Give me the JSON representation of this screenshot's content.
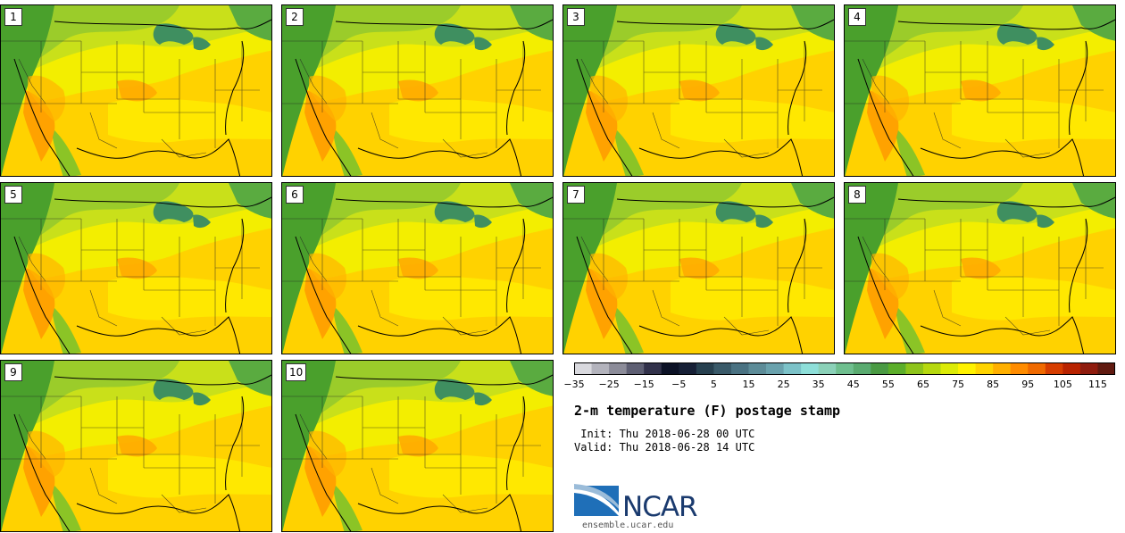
{
  "panels": [
    {
      "label": "1"
    },
    {
      "label": "2"
    },
    {
      "label": "3"
    },
    {
      "label": "4"
    },
    {
      "label": "5"
    },
    {
      "label": "6"
    },
    {
      "label": "7"
    },
    {
      "label": "8"
    },
    {
      "label": "9"
    },
    {
      "label": "10"
    }
  ],
  "colorbar": {
    "colors": [
      "#d9d9de",
      "#b3b3bc",
      "#8c8c99",
      "#5e5f73",
      "#32324b",
      "#0c1226",
      "#172036",
      "#27404f",
      "#3a5a69",
      "#4a7282",
      "#5d8c98",
      "#6aa2ad",
      "#7cc2c8",
      "#8edfd9",
      "#8bd1b8",
      "#6fbf8f",
      "#5aab70",
      "#4a9a43",
      "#5cae2a",
      "#8ec41b",
      "#b6d80f",
      "#dceb07",
      "#fff200",
      "#ffd400",
      "#ffb000",
      "#ff8c00",
      "#f06a00",
      "#d63d00",
      "#b82300",
      "#8f1c0e",
      "#601a10"
    ],
    "tick_labels": [
      "−35",
      "−25",
      "−15",
      "−5",
      "5",
      "15",
      "25",
      "35",
      "45",
      "55",
      "65",
      "75",
      "85",
      "95",
      "105",
      "115"
    ]
  },
  "title": "2-m temperature (F) postage stamp",
  "init": " Init: Thu 2018-06-28 00 UTC",
  "valid": "Valid: Thu 2018-06-28 14 UTC",
  "logo": {
    "text": "NCAR",
    "url": "ensemble.ucar.edu"
  }
}
